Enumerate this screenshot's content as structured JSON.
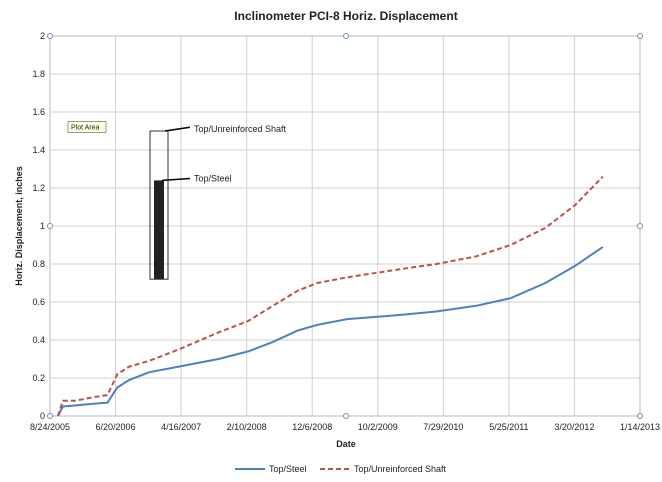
{
  "chart_data": {
    "type": "line",
    "title": "Inclinometer PCI-8 Horiz. Displacement",
    "x_label": "Date",
    "y_label": "Horiz. Displacement, inches",
    "x": [
      "9/29/2005",
      "10/22/2005",
      "12/15/2005",
      "3/16/2006",
      "5/14/2006",
      "6/28/2006",
      "8/22/2006",
      "11/20/2006",
      "4/5/2007",
      "10/4/2007",
      "2/17/2008",
      "6/9/2008",
      "10/1/2008",
      "12/30/2008",
      "5/15/2009",
      "12/28/2009",
      "6/27/2010",
      "12/26/2010",
      "6/2/2011",
      "11/8/2011",
      "3/23/2012",
      "7/28/2012"
    ],
    "series": [
      {
        "name": "Top/Steel",
        "color": "#4f81bd",
        "dash": false,
        "values": [
          0,
          0.05,
          0.055,
          0.065,
          0.07,
          0.15,
          0.19,
          0.23,
          0.26,
          0.3,
          0.34,
          0.39,
          0.45,
          0.48,
          0.51,
          0.53,
          0.55,
          0.58,
          0.62,
          0.7,
          0.79,
          0.89
        ]
      },
      {
        "name": "Top/Unreinforced Shaft",
        "color": "#c0504d",
        "dash": true,
        "values": [
          0,
          0.08,
          0.08,
          0.1,
          0.11,
          0.22,
          0.26,
          0.29,
          0.35,
          0.44,
          0.5,
          0.58,
          0.66,
          0.7,
          0.73,
          0.77,
          0.8,
          0.84,
          0.9,
          0.99,
          1.11,
          1.26
        ]
      }
    ],
    "xlim": [
      "8/24/2005",
      "1/14/2013"
    ],
    "xticks": [
      "8/24/2005",
      "6/20/2006",
      "4/16/2007",
      "2/10/2008",
      "12/6/2008",
      "10/2/2009",
      "7/29/2010",
      "5/25/2011",
      "3/20/2012",
      "1/14/2013"
    ],
    "ylim": [
      0,
      2
    ],
    "yticks": [
      0,
      0.2,
      0.4,
      0.6,
      0.8,
      1,
      1.2,
      1.4,
      1.6,
      1.8,
      2
    ],
    "grid": true,
    "legend": "bottom",
    "annotations": [
      "Plot Area",
      "Top/Unreinforced Shaft",
      "Top/Steel"
    ]
  }
}
